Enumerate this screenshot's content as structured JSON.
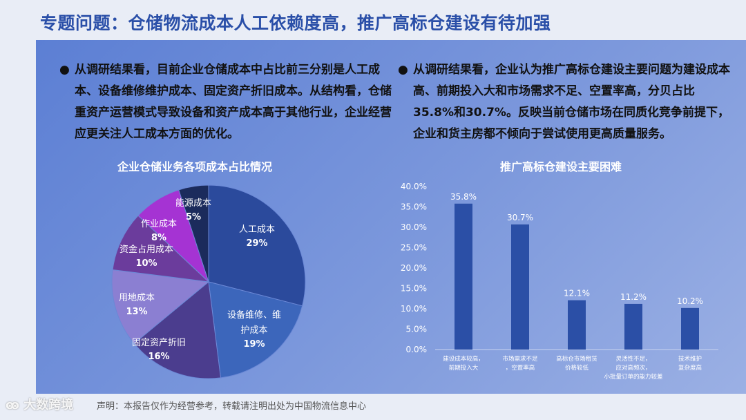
{
  "title": "专题问题：仓储物流成本人工依赖度高，推广高标仓建设有待加强",
  "bullets": [
    "从调研结果看，目前企业仓储成本中占比前三分别是人工成本、设备维修维护成本、固定资产折旧成本。从结构看，仓储重资产运营模式导致设备和资产成本高于其他行业，企业经营应更关注人工成本方面的优化。",
    "从调研结果看，企业认为推广高标仓建设主要问题为建设成本高、前期投入大和市场需求不足、空置率高，分贝占比35.8%和30.7%。反映当前仓储市场在同质化竞争前提下，企业和货主房都不倾向于尝试使用更高质量服务。"
  ],
  "bullet_icon": "●",
  "footer": "声明：本报告仅作为经营参考，转载请注明出处为中国物流信息中心",
  "watermark": "大数跨境",
  "chart_data": [
    {
      "type": "pie",
      "title": "企业仓储业务各项成本占比情况",
      "slices": [
        {
          "label": "人工成本",
          "value": 29,
          "color": "#2b4a9c"
        },
        {
          "label": "设备维修、维护成本",
          "value": 19,
          "color": "#3c66bb"
        },
        {
          "label": "固定资产折旧",
          "value": 16,
          "color": "#4b3d8e"
        },
        {
          "label": "用地成本",
          "value": 13,
          "color": "#8b7fd2"
        },
        {
          "label": "资金占用成本",
          "value": 10,
          "color": "#6b3c9c"
        },
        {
          "label": "作业成本",
          "value": 8,
          "color": "#a533d3"
        },
        {
          "label": "能源成本",
          "value": 5,
          "color": "#1b2b5c"
        }
      ]
    },
    {
      "type": "bar",
      "title": "推广高标仓建设主要困难",
      "categories": [
        "建设成本较高，\n前期投入大",
        "市场需求不足\n，空置率高",
        "高标仓市场租赁\n价格较低",
        "灵活性不足，\n应对高频次，\n小批量订单的能力较差",
        "技术维护\n复杂度高"
      ],
      "values": [
        35.8,
        30.7,
        12.1,
        11.2,
        10.2
      ],
      "data_labels": [
        "35.8%",
        "30.7%",
        "12.1%",
        "11.2%",
        "10.2%"
      ],
      "yticks": [
        "0.0%",
        "5.0%",
        "10.0%",
        "15.0%",
        "20.0%",
        "25.0%",
        "30.0%",
        "35.0%",
        "40.0%"
      ],
      "ylim": [
        0,
        40
      ],
      "bar_color": "#2b4fa6",
      "grid": false
    }
  ]
}
